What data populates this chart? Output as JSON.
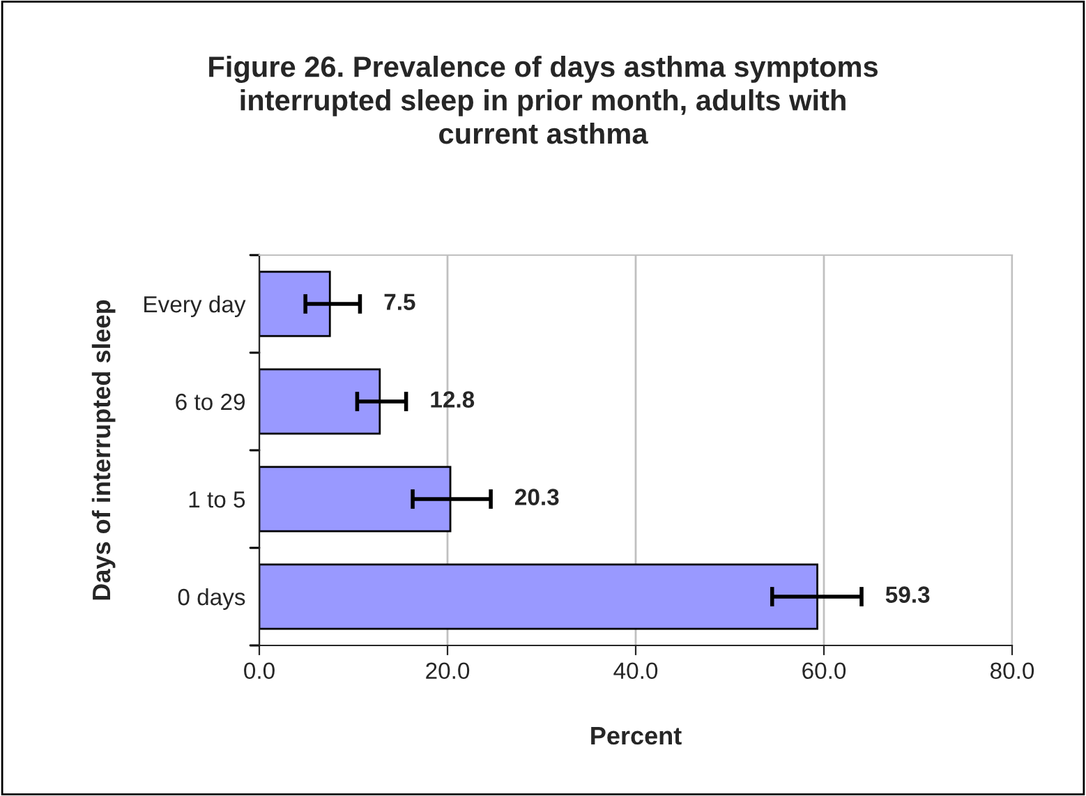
{
  "chart_data": {
    "type": "bar",
    "orientation": "horizontal",
    "title": "Figure 26. Prevalence of days asthma symptoms\ninterrupted sleep in prior month, adults with\ncurrent asthma",
    "xlabel": "Percent",
    "ylabel": "Days of interrupted sleep",
    "categories": [
      "Every day",
      "6 to 29",
      "1 to 5",
      "0 days"
    ],
    "values": [
      7.5,
      12.8,
      20.3,
      59.3
    ],
    "errors": [
      [
        4.9,
        10.7
      ],
      [
        10.4,
        15.6
      ],
      [
        16.3,
        24.6
      ],
      [
        54.5,
        64.0
      ]
    ],
    "color": "#9999ff",
    "data_labels": true,
    "xlim": [
      0,
      80
    ],
    "xticks": [
      {
        "value": 0,
        "label": "0.0"
      },
      {
        "value": 20,
        "label": "20.0"
      },
      {
        "value": 40,
        "label": "40.0"
      },
      {
        "value": 60,
        "label": "60.0"
      },
      {
        "value": 80,
        "label": "80.0"
      }
    ],
    "grid": "x",
    "legend": false
  }
}
